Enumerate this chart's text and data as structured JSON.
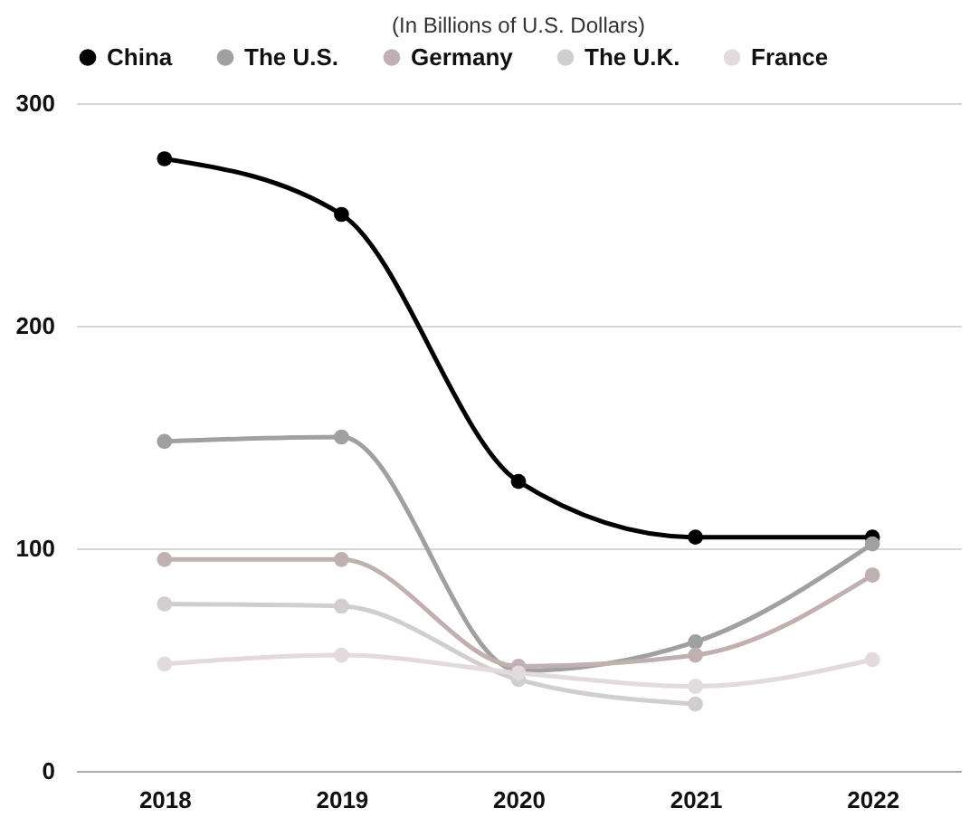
{
  "chart_data": {
    "type": "line",
    "title": "(In Billions of U.S. Dollars)",
    "categories": [
      "2018",
      "2019",
      "2020",
      "2021",
      "2022"
    ],
    "series": [
      {
        "name": "China",
        "color": "#000000",
        "values": [
          275,
          250,
          130,
          105,
          105
        ]
      },
      {
        "name": "The U.S.",
        "color": "#a0a0a0",
        "values": [
          148,
          150,
          45,
          58,
          102
        ]
      },
      {
        "name": "Germany",
        "color": "#c0b0b0",
        "values": [
          95,
          95,
          47,
          52,
          88
        ]
      },
      {
        "name": "The U.K.",
        "color": "#d2cece",
        "values": [
          75,
          74,
          41,
          30,
          null
        ]
      },
      {
        "name": "France",
        "color": "#e2dade",
        "values": [
          48,
          52,
          44,
          38,
          50
        ]
      }
    ],
    "ylim": [
      0,
      300
    ],
    "yticks": [
      0,
      100,
      200,
      300
    ],
    "grid": "y",
    "legend": "top",
    "marker": "circle",
    "line_style": "solid"
  }
}
